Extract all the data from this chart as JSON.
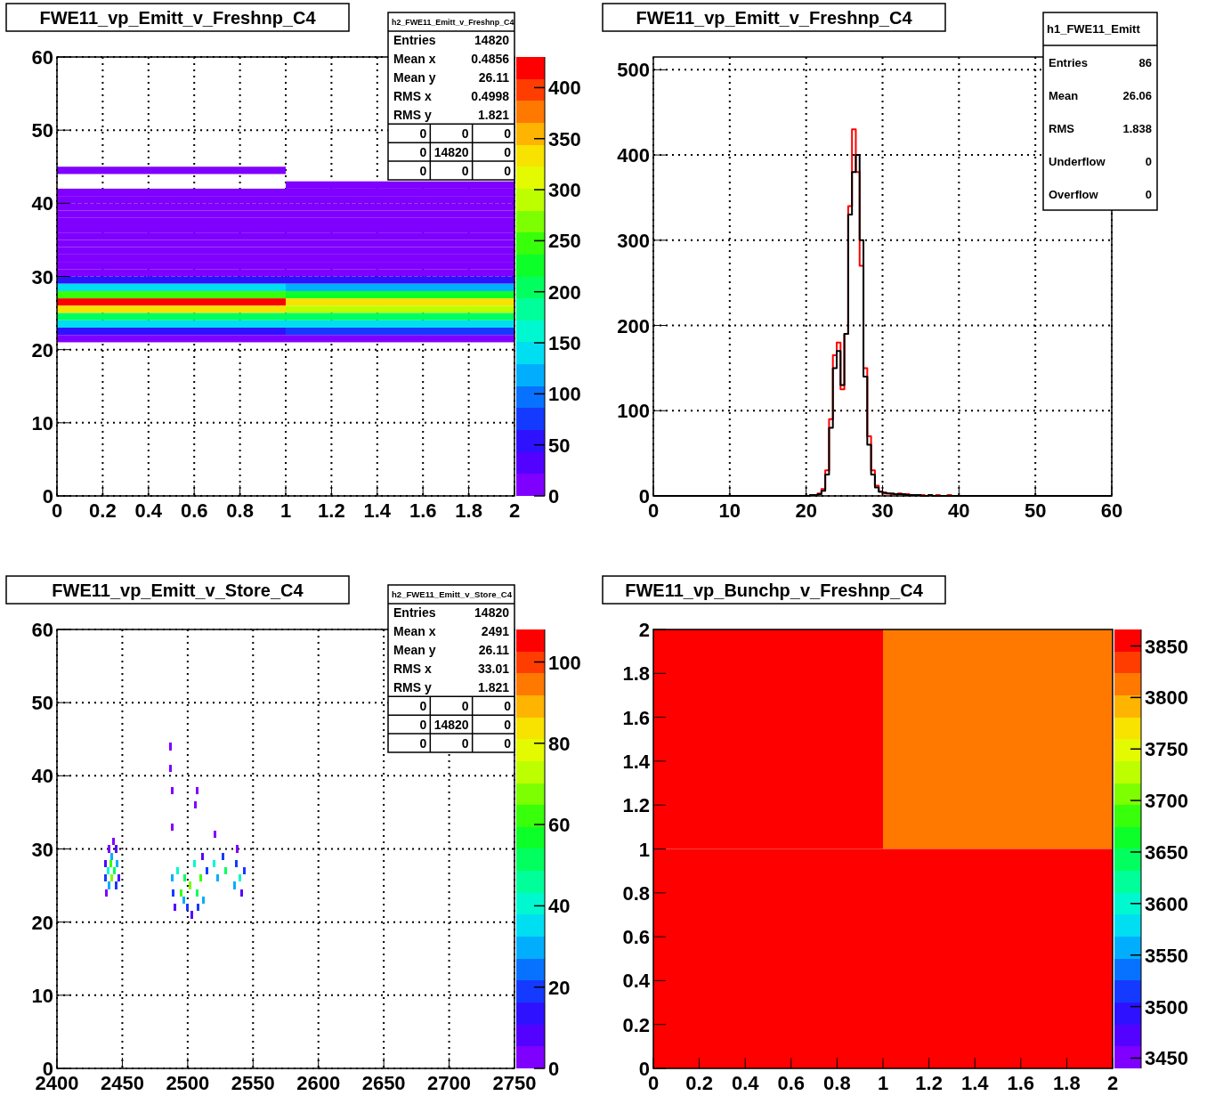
{
  "chart_data": [
    {
      "type": "heatmap",
      "title": "FWE11_vp_Emitt_v_Freshnp_C4",
      "annotations": [
        "h2_FWE11_Emitt_v_Freshnp_C4",
        "Entries 14820",
        "Mean x 0.4856",
        "Mean y 26.11",
        "RMS x 0.4998",
        "RMS y 1.821",
        "0 0 0",
        "0 14820 0",
        "0 0 0"
      ],
      "x": [
        0.5,
        1.5
      ],
      "y": [
        44.5,
        42.5,
        41.5,
        40.5,
        39.5,
        38.5,
        37.5,
        36.5,
        35.5,
        34.5,
        33.5,
        32.5,
        31.5,
        30.5,
        29.5,
        28.5,
        27.5,
        26.5,
        25.5,
        24.5,
        23.5,
        22.5,
        21.5
      ],
      "cells": [
        [
          1,
          null
        ],
        [
          null,
          1
        ],
        [
          2,
          2
        ],
        [
          2,
          1
        ],
        [
          3,
          3
        ],
        [
          4,
          3
        ],
        [
          5,
          4
        ],
        [
          6,
          5
        ],
        [
          10,
          5
        ],
        [
          12,
          6
        ],
        [
          12,
          6
        ],
        [
          12,
          8
        ],
        [
          15,
          10
        ],
        [
          20,
          15
        ],
        [
          60,
          50
        ],
        [
          130,
          110
        ],
        [
          250,
          220
        ],
        [
          410,
          330
        ],
        [
          330,
          290
        ],
        [
          200,
          200
        ],
        [
          130,
          140
        ],
        [
          60,
          70
        ],
        [
          20,
          15
        ]
      ],
      "xlim": [
        0,
        2
      ],
      "xticks": [
        0,
        0.2,
        0.4,
        0.6,
        0.8,
        1,
        1.2,
        1.4,
        1.6,
        1.8,
        2
      ],
      "ylim": [
        0,
        60
      ],
      "yticks": [
        0,
        10,
        20,
        30,
        40,
        50,
        60
      ],
      "clim": [
        0,
        430
      ],
      "cticks": [
        0,
        50,
        100,
        150,
        200,
        250,
        300,
        350,
        400
      ],
      "grid": true
    },
    {
      "type": "histogram",
      "title": "FWE11_vp_Emitt_v_Freshnp_C4",
      "annotations": [
        "h1_FWE11_Emitt",
        "Entries 86",
        "Mean 26.06",
        "RMS 1.838",
        "Underflow 0",
        "Overflow 0"
      ],
      "bins": [
        0,
        0.5,
        1,
        1.5,
        2,
        2.5,
        3,
        3.5,
        4,
        4.5,
        5,
        5.5,
        6,
        6.5,
        7,
        7.5,
        8,
        8.5,
        9,
        9.5,
        10,
        10.5,
        11,
        11.5,
        12,
        12.5,
        13,
        13.5,
        14,
        14.5,
        15,
        15.5,
        16,
        16.5,
        17,
        17.5,
        18,
        18.5,
        19,
        19.5,
        20,
        20.5,
        21,
        21.5,
        22,
        22.5,
        23,
        23.5,
        24,
        24.5,
        25,
        25.5,
        26,
        26.5,
        27,
        27.5,
        28,
        28.5,
        29,
        29.5,
        30,
        30.5,
        31,
        31.5,
        32,
        32.5,
        33,
        33.5,
        34,
        34.5,
        35,
        35.5,
        36,
        36.5,
        37,
        37.5,
        38,
        38.5,
        39,
        39.5,
        40,
        40.5,
        41,
        41.5,
        42,
        42.5,
        43,
        43.5,
        44,
        44.5,
        45,
        45.5,
        46,
        46.5,
        47,
        47.5,
        48,
        48.5,
        49,
        49.5,
        50,
        50.5,
        51,
        51.5,
        52,
        52.5,
        53,
        53.5,
        54,
        54.5,
        55,
        55.5,
        56,
        56.5,
        57,
        57.5,
        58,
        58.5,
        59,
        59.5,
        60
      ],
      "series": [
        {
          "color": "#ff0000",
          "values": [
            0,
            0,
            0,
            0,
            0,
            0,
            0,
            0,
            0,
            0,
            0,
            0,
            0,
            0,
            0,
            0,
            0,
            0,
            0,
            0,
            0,
            0,
            0,
            0,
            0,
            0,
            0,
            0,
            0,
            0,
            0,
            0,
            0,
            0,
            0,
            0,
            0,
            0,
            0,
            0,
            0,
            1,
            1,
            3,
            8,
            30,
            90,
            165,
            180,
            125,
            190,
            340,
            430,
            380,
            270,
            150,
            70,
            30,
            12,
            5,
            3,
            3,
            2,
            2,
            3,
            2,
            2,
            1,
            1,
            1,
            1,
            0,
            1,
            0,
            1,
            0,
            0,
            1,
            0,
            0,
            0,
            0,
            0,
            0,
            0,
            0,
            0,
            0,
            0,
            0,
            0,
            0,
            0,
            0,
            0,
            0,
            0,
            0,
            0,
            0,
            0,
            0,
            0,
            0,
            0,
            0,
            0,
            0,
            0,
            0,
            0,
            0,
            0,
            0,
            0,
            0,
            0,
            0,
            0,
            0
          ]
        },
        {
          "color": "#000000",
          "values": [
            0,
            0,
            0,
            0,
            0,
            0,
            0,
            0,
            0,
            0,
            0,
            0,
            0,
            0,
            0,
            0,
            0,
            0,
            0,
            0,
            0,
            0,
            0,
            0,
            0,
            0,
            0,
            0,
            0,
            0,
            0,
            0,
            0,
            0,
            0,
            0,
            0,
            0,
            0,
            0,
            0,
            1,
            1,
            2,
            6,
            25,
            80,
            150,
            170,
            130,
            190,
            330,
            380,
            400,
            300,
            140,
            60,
            25,
            10,
            5,
            4,
            3,
            3,
            2,
            2,
            2,
            1,
            1,
            1,
            1,
            0,
            0,
            1,
            0,
            0,
            0,
            0,
            0,
            0,
            0,
            0,
            0,
            0,
            0,
            0,
            0,
            0,
            0,
            0,
            0,
            0,
            0,
            0,
            0,
            0,
            0,
            0,
            0,
            0,
            0,
            0,
            0,
            0,
            0,
            0,
            0,
            0,
            0,
            0,
            0,
            0,
            0,
            0,
            0,
            0,
            0,
            0,
            0,
            0,
            0
          ]
        }
      ],
      "xlim": [
        0,
        60
      ],
      "xticks": [
        0,
        10,
        20,
        30,
        40,
        50,
        60
      ],
      "ylim": [
        0,
        515
      ],
      "yticks": [
        0,
        100,
        200,
        300,
        400,
        500
      ],
      "grid": true
    },
    {
      "type": "scatter",
      "title": "FWE11_vp_Emitt_v_Store_C4",
      "annotations": [
        "h2_FWE11_Emitt_v_Store_C4",
        "Entries 14820",
        "Mean x 2491",
        "Mean y 26.11",
        "RMS x 33.01",
        "RMS y 1.821",
        "0 0 0",
        "0 14820 0",
        "0 0 0"
      ],
      "marker": "square",
      "x": [
        2437,
        2437,
        2438,
        2439,
        2440,
        2440,
        2441,
        2442,
        2442,
        2443,
        2444,
        2445,
        2445,
        2446,
        2447,
        2487,
        2487,
        2488,
        2488,
        2488,
        2489,
        2490,
        2492,
        2495,
        2497,
        2498,
        2500,
        2502,
        2503,
        2505,
        2506,
        2507,
        2507,
        2508,
        2510,
        2511,
        2512,
        2515,
        2520,
        2521,
        2523,
        2527,
        2529,
        2536,
        2537,
        2538,
        2540,
        2541,
        2543
      ],
      "values": [
        26,
        28,
        24,
        27,
        30,
        25,
        28,
        26,
        29,
        31,
        27,
        25,
        30,
        28,
        26,
        44,
        41,
        38,
        33,
        26,
        24,
        22,
        27,
        24,
        23,
        26,
        22,
        25,
        21,
        28,
        36,
        38,
        24,
        22,
        26,
        29,
        23,
        27,
        28,
        32,
        26,
        29,
        27,
        25,
        28,
        30,
        26,
        24,
        27
      ],
      "cvalues": [
        20,
        10,
        5,
        40,
        5,
        30,
        60,
        70,
        30,
        5,
        50,
        20,
        10,
        30,
        10,
        5,
        5,
        5,
        5,
        30,
        20,
        10,
        40,
        60,
        30,
        50,
        20,
        70,
        10,
        40,
        5,
        5,
        50,
        20,
        60,
        10,
        30,
        20,
        40,
        5,
        30,
        20,
        50,
        30,
        20,
        5,
        40,
        10,
        20
      ],
      "xlim": [
        2400,
        2750
      ],
      "xticks": [
        2400,
        2450,
        2500,
        2550,
        2600,
        2650,
        2700,
        2750
      ],
      "ylim": [
        0,
        60
      ],
      "yticks": [
        0,
        10,
        20,
        30,
        40,
        50,
        60
      ],
      "clim": [
        0,
        108
      ],
      "cticks": [
        0,
        20,
        40,
        60,
        80,
        100
      ],
      "grid": true
    },
    {
      "type": "heatmap",
      "title": "FWE11_vp_Bunchp_v_Freshnp_C4",
      "x": [
        0.5,
        1.5
      ],
      "y": [
        1.5,
        0.5
      ],
      "cells": [
        [
          3860,
          3810
        ],
        [
          3862,
          3858
        ]
      ],
      "xlim": [
        0,
        2
      ],
      "xticks": [
        0,
        0.2,
        0.4,
        0.6,
        0.8,
        1,
        1.2,
        1.4,
        1.6,
        1.8,
        2
      ],
      "ylim": [
        0,
        2
      ],
      "yticks": [
        0,
        0.2,
        0.4,
        0.6,
        0.8,
        1,
        1.2,
        1.4,
        1.6,
        1.8,
        2
      ],
      "clim": [
        3440,
        3866
      ],
      "cticks": [
        3450,
        3500,
        3550,
        3600,
        3650,
        3700,
        3750,
        3800,
        3850
      ]
    }
  ]
}
